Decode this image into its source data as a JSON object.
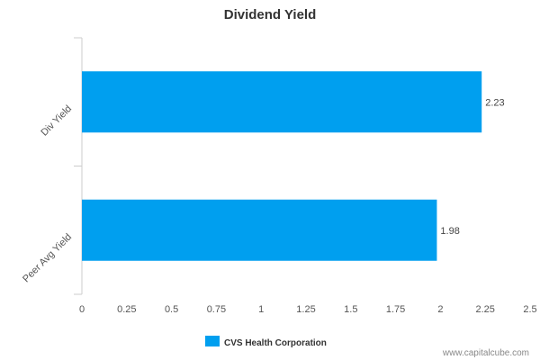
{
  "chart_data": {
    "type": "bar",
    "orientation": "horizontal",
    "title": "Dividend Yield",
    "categories": [
      "Div Yield",
      "Peer Avg Yield"
    ],
    "series": [
      {
        "name": "CVS Health Corporation",
        "values": [
          2.23,
          1.98
        ],
        "color": "#009FEF"
      }
    ],
    "data_labels": [
      "2.23",
      "1.98"
    ],
    "xlim": [
      0,
      2.5
    ],
    "x_ticks": [
      "0",
      "0.25",
      "0.5",
      "0.75",
      "1",
      "1.25",
      "1.5",
      "1.75",
      "2",
      "2.25",
      "2.5"
    ],
    "grid": false,
    "legend_position": "bottom"
  },
  "credit": "www.capitalcube.com"
}
